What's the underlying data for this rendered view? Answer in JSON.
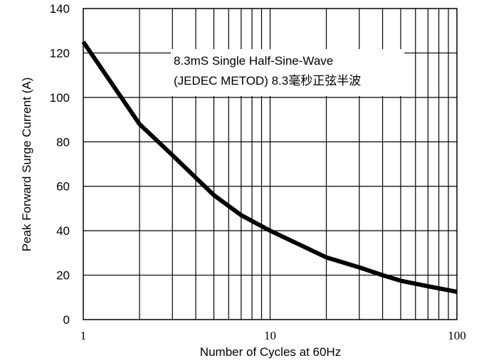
{
  "chart_data": {
    "type": "line",
    "title": "",
    "xlabel": "Number of Cycles at 60Hz",
    "ylabel": "Peak Forward Surge Current (A)",
    "xscale": "log",
    "xlim": [
      1,
      100
    ],
    "ylim": [
      0,
      140
    ],
    "xticks": [
      1,
      10,
      100
    ],
    "xtick_labels": [
      "1",
      "10",
      "100"
    ],
    "yticks": [
      0,
      20,
      40,
      60,
      80,
      100,
      120,
      140
    ],
    "ytick_labels": [
      "0",
      "20",
      "40",
      "60",
      "80",
      "100",
      "120",
      "140"
    ],
    "grid": true,
    "line_color": "#000000",
    "annotation": {
      "line1": "8.3mS Single Half-Sine-Wave",
      "line2": "(JEDEC METOD)  8.3毫秒正弦半波"
    },
    "series": [
      {
        "x": [
          1,
          2,
          3,
          5,
          7,
          10,
          20,
          30,
          40,
          50,
          70,
          100
        ],
        "y": [
          125,
          88,
          74,
          56,
          47,
          40,
          28,
          23.5,
          20,
          17.5,
          15,
          12.5
        ]
      }
    ]
  }
}
